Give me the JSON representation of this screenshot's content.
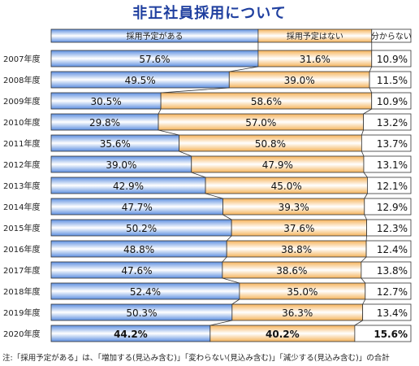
{
  "chart_data": {
    "type": "bar",
    "stacked": true,
    "orientation": "horizontal",
    "title": "非正社員採用について",
    "categories": [
      "2007年度",
      "2008年度",
      "2009年度",
      "2010年度",
      "2011年度",
      "2012年度",
      "2013年度",
      "2014年度",
      "2015年度",
      "2016年度",
      "2017年度",
      "2018年度",
      "2019年度",
      "2020年度"
    ],
    "series": [
      {
        "name": "採用予定がある",
        "color": "#7fa7e8",
        "values": [
          57.6,
          49.5,
          30.5,
          29.8,
          35.6,
          39.0,
          42.9,
          47.7,
          50.2,
          48.8,
          47.6,
          52.4,
          50.3,
          44.2
        ],
        "labels": [
          "57.6%",
          "49.5%",
          "30.5%",
          "29.8%",
          "35.6%",
          "39.0%",
          "42.9%",
          "47.7%",
          "50.2%",
          "48.8%",
          "47.6%",
          "52.4%",
          "50.3%",
          "44.2%"
        ]
      },
      {
        "name": "採用予定はない",
        "color": "#f7c98a",
        "values": [
          31.6,
          39.0,
          58.6,
          57.0,
          50.8,
          47.9,
          45.0,
          39.3,
          37.6,
          38.8,
          38.6,
          35.0,
          36.3,
          40.2
        ],
        "labels": [
          "31.6%",
          "39.0%",
          "58.6%",
          "57.0%",
          "50.8%",
          "47.9%",
          "45.0%",
          "39.3%",
          "37.6%",
          "38.8%",
          "38.6%",
          "35.0%",
          "36.3%",
          "40.2%"
        ]
      },
      {
        "name": "分からない",
        "color": "#ffffff",
        "values": [
          10.9,
          11.5,
          10.9,
          13.2,
          13.7,
          13.1,
          12.1,
          12.9,
          12.3,
          12.4,
          13.8,
          12.7,
          13.4,
          15.6
        ],
        "labels": [
          "10.9%",
          "11.5%",
          "10.9%",
          "13.2%",
          "13.7%",
          "13.1%",
          "12.1%",
          "12.9%",
          "12.3%",
          "12.4%",
          "13.8%",
          "12.7%",
          "13.4%",
          "15.6%"
        ]
      }
    ],
    "highlight_last_row": true,
    "xlim": [
      0,
      100
    ]
  },
  "note": "注:「採用予定がある」は、「増加する(見込み含む)」「変わらない(見込み含む)」「減少する(見込み含む)」の合計"
}
